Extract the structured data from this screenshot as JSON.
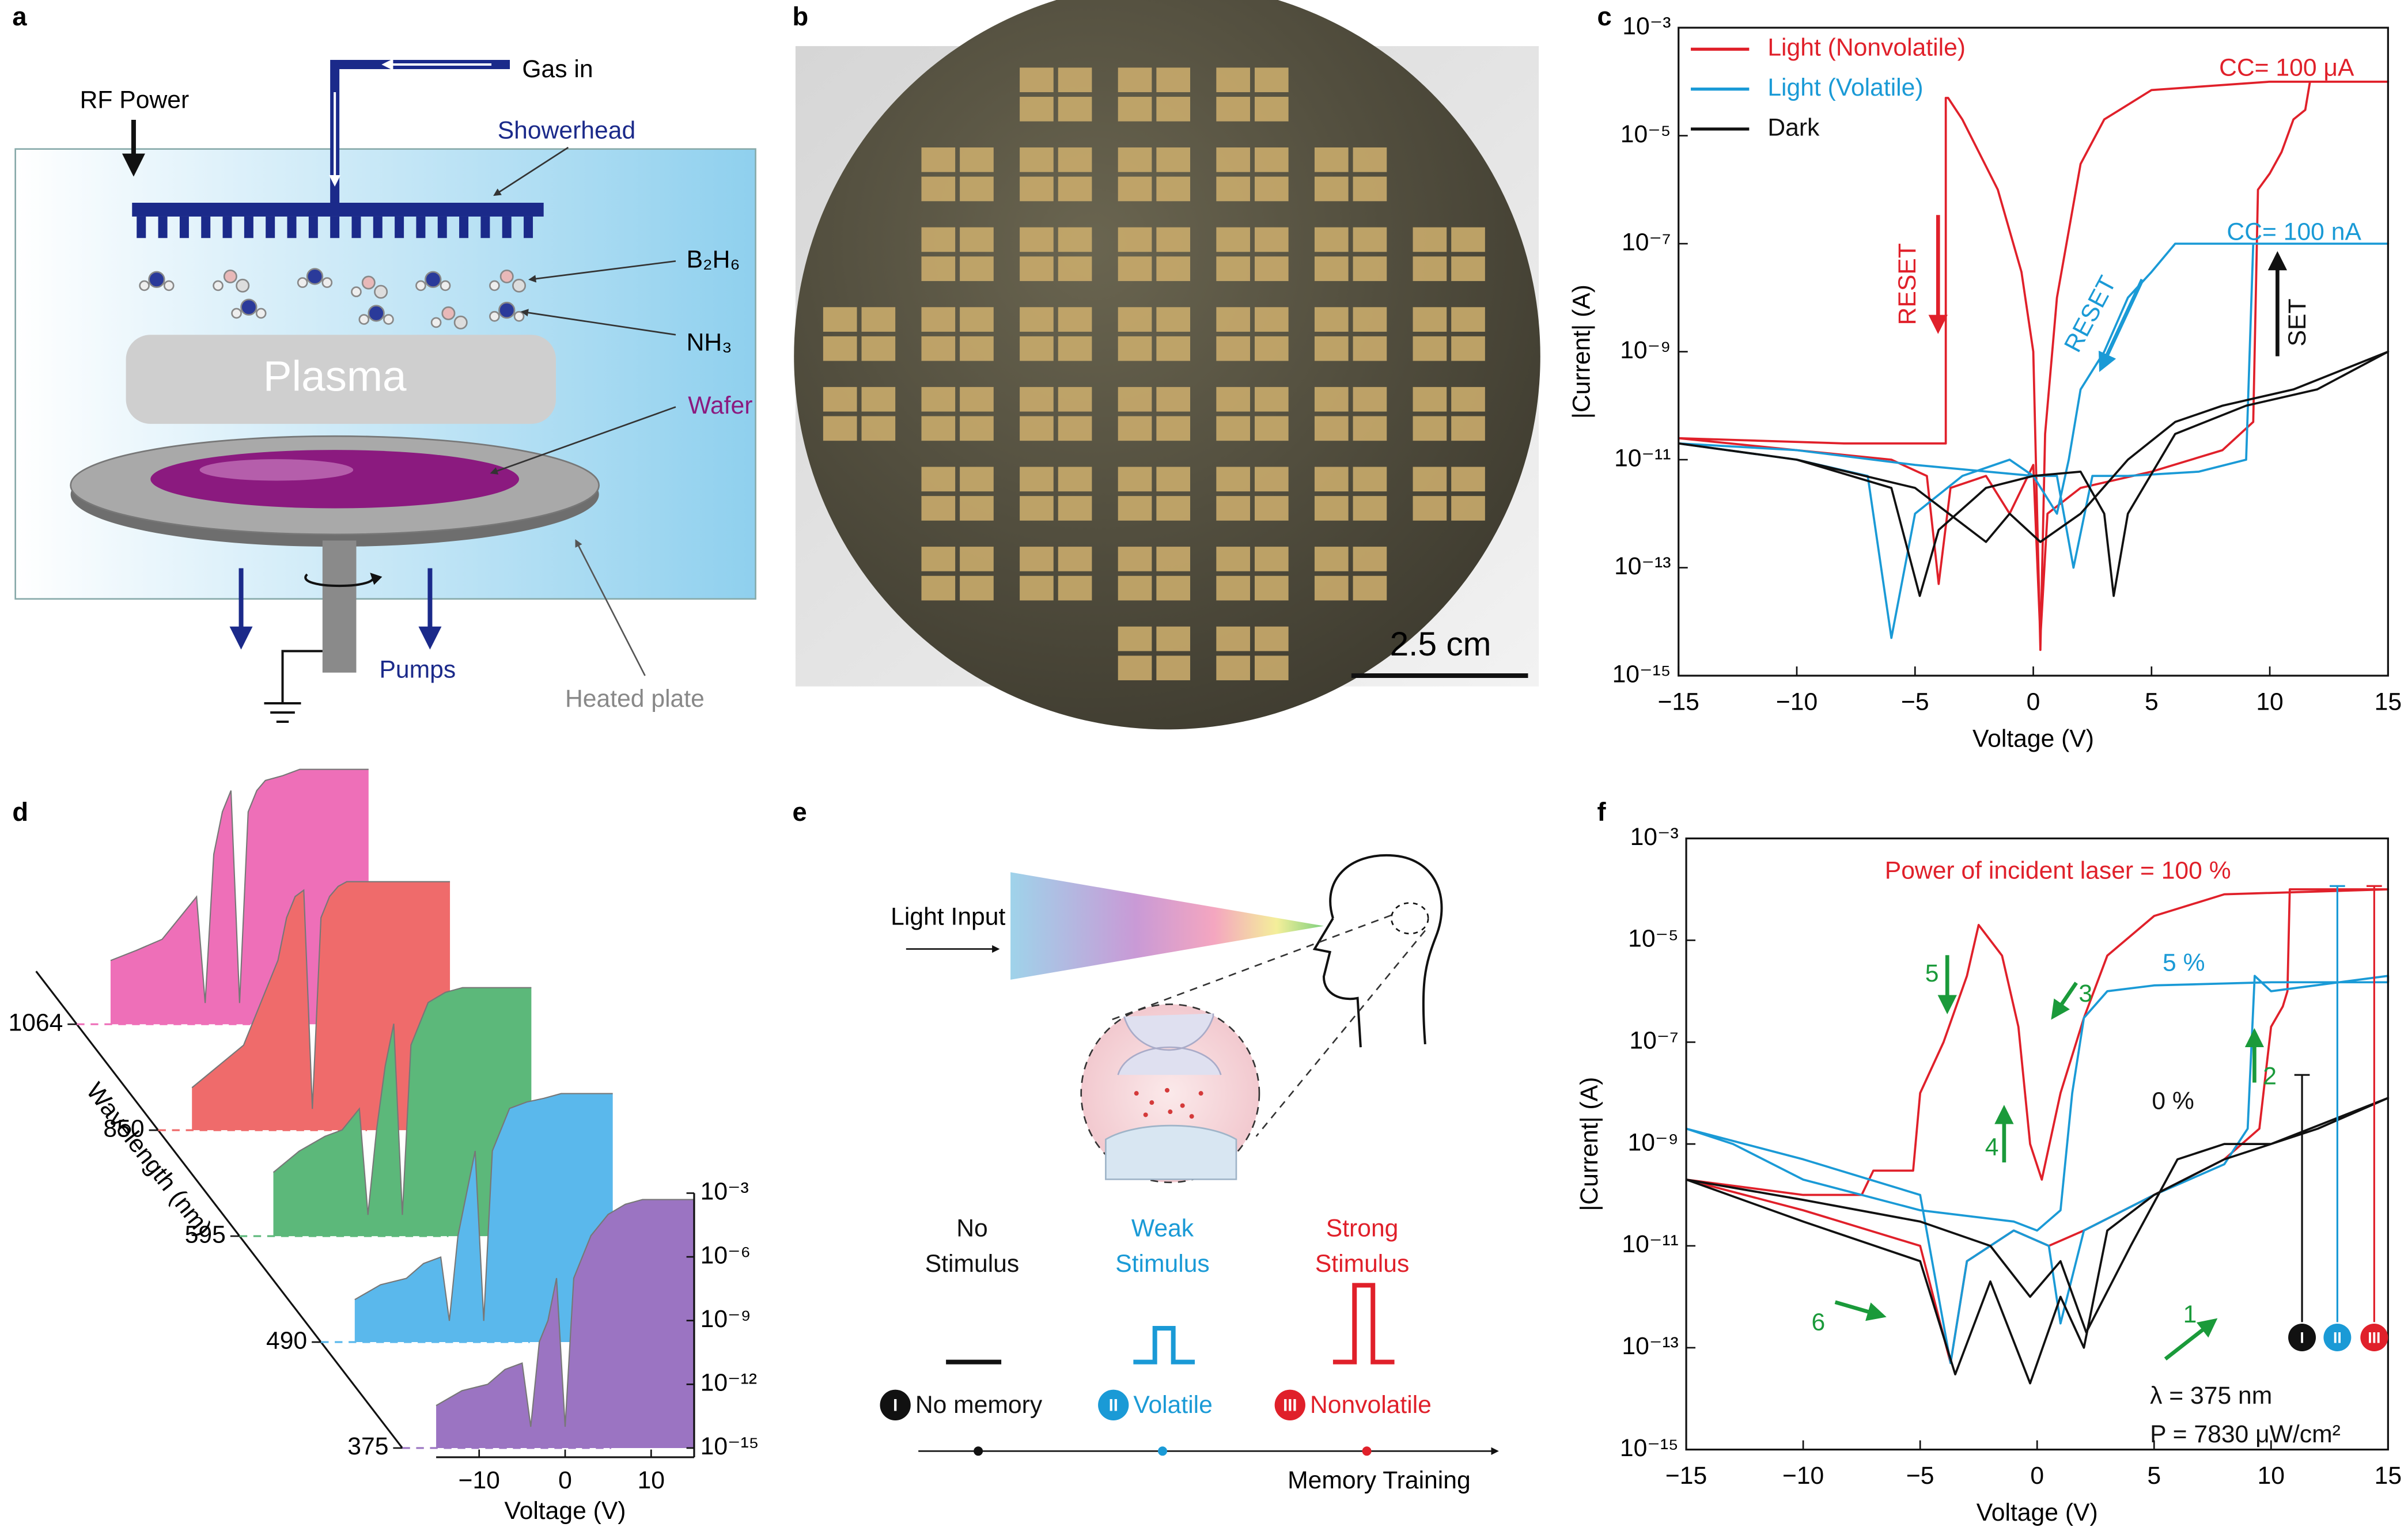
{
  "panel_labels": [
    "a",
    "b",
    "c",
    "d",
    "e",
    "f"
  ],
  "diagram_a": {
    "rf_power": "RF Power",
    "gas_in": "Gas in",
    "showerhead": "Showerhead",
    "b2h6": "B₂H₆",
    "nh3": "NH₃",
    "plasma": "Plasma",
    "wafer": "Wafer",
    "pumps": "Pumps",
    "heated_plate": "Heated plate"
  },
  "photo_b": {
    "scale_bar": "2.5 cm"
  },
  "diagram_e": {
    "light_input": "Light Input",
    "stimuli": [
      {
        "lines": [
          "No",
          "Stimulus"
        ],
        "color": "#111111",
        "memory": "No memory",
        "numeral": "I"
      },
      {
        "lines": [
          "Weak",
          "Stimulus"
        ],
        "color": "#1a9ad6",
        "memory": "Volatile",
        "numeral": "II"
      },
      {
        "lines": [
          "Strong",
          "Stimulus"
        ],
        "color": "#e0202a",
        "memory": "Nonvolatile",
        "numeral": "III"
      }
    ],
    "axis": "Memory Training"
  },
  "chart_data": [
    {
      "type": "line",
      "yscale": "log",
      "xlabel": "Voltage (V)",
      "ylabel": "|Current| (A)",
      "xlim": [
        -15,
        15
      ],
      "xticks": [
        {
          "value": -15,
          "label": "−15"
        },
        {
          "value": -10,
          "label": "−10"
        },
        {
          "value": -5,
          "label": "−5"
        },
        0,
        5,
        10,
        15
      ],
      "ylim": [
        1e-15,
        0.001
      ],
      "yticks": [
        {
          "value": 0.001,
          "label": "10⁻³"
        },
        {
          "value": 1e-05,
          "label": "10⁻⁵"
        },
        {
          "value": 1e-07,
          "label": "10⁻⁷"
        },
        {
          "value": 1e-09,
          "label": "10⁻⁹"
        },
        {
          "value": 1e-11,
          "label": "10⁻¹¹"
        },
        {
          "value": 1e-13,
          "label": "10⁻¹³"
        },
        {
          "value": 1e-15,
          "label": "10⁻¹⁵"
        }
      ],
      "legend": "upper left",
      "series": [
        {
          "name": "Light (Nonvolatile)",
          "color": "#e0202a",
          "x": [
            -15,
            -10,
            -6,
            -4.5,
            -4,
            -3.5,
            -2,
            -1,
            0,
            0.3,
            0.6,
            2,
            5,
            8,
            9.3,
            9.5,
            10,
            10.5,
            11,
            11.5,
            11.7,
            15,
            15,
            10,
            5,
            3,
            2,
            1,
            0.5,
            0.3,
            0,
            -0.5,
            -1.5,
            -3,
            -3.6,
            -3.7,
            -3.7,
            -8,
            -15
          ],
          "values": [
            2.5e-11,
            1.5e-11,
            1e-11,
            5e-12,
            5e-14,
            3e-12,
            5e-12,
            1e-12,
            8e-12,
            5e-15,
            1e-12,
            3e-12,
            6e-12,
            1.5e-11,
            5e-11,
            1e-06,
            2e-06,
            5e-06,
            2e-05,
            3e-05,
            0.0001,
            0.0001,
            0.0001,
            0.0001,
            7e-05,
            2e-05,
            3e-06,
            1e-08,
            3e-11,
            3e-15,
            1e-09,
            3e-08,
            1e-06,
            2e-05,
            5e-05,
            5e-05,
            2e-11,
            2e-11,
            2.5e-11
          ]
        },
        {
          "name": "Light (Volatile)",
          "color": "#1a9ad6",
          "x": [
            -15,
            -10,
            -7,
            -6,
            -5,
            -3,
            -1,
            0,
            1,
            1.7,
            2.5,
            4,
            7,
            9,
            9.3,
            15,
            15,
            6,
            5,
            4,
            3,
            2,
            1.5,
            1,
            0,
            -5,
            -10,
            -15
          ],
          "values": [
            2e-11,
            1e-11,
            5e-12,
            5e-15,
            1e-12,
            5e-12,
            1e-11,
            5e-12,
            5e-12,
            1e-13,
            5e-12,
            5e-12,
            6e-12,
            1e-11,
            1e-07,
            1e-07,
            1e-07,
            1e-07,
            3e-08,
            1e-08,
            1e-09,
            2e-10,
            1e-11,
            1e-12,
            5e-12,
            8e-12,
            1.5e-11,
            2e-11
          ]
        },
        {
          "name": "Dark",
          "color": "#111111",
          "x": [
            -15,
            -10,
            -6,
            -4.8,
            -4,
            -2,
            0,
            2,
            3,
            3.4,
            4,
            6,
            9,
            12,
            15,
            11,
            8,
            6,
            4,
            2,
            0.3,
            -1,
            -2,
            -5,
            -10,
            -15
          ],
          "values": [
            2e-11,
            1e-11,
            3e-12,
            3e-14,
            5e-13,
            3e-12,
            5e-12,
            6e-12,
            1e-12,
            3e-14,
            1e-12,
            3e-11,
            1e-10,
            2e-10,
            1e-09,
            2e-10,
            1e-10,
            5e-11,
            1e-11,
            1e-12,
            3e-13,
            1e-12,
            3e-13,
            3e-12,
            1e-11,
            2e-11
          ]
        }
      ],
      "annotations": [
        {
          "text": "CC= 100 μA",
          "color": "#e0202a"
        },
        {
          "text": "CC= 100 nA",
          "color": "#1a9ad6"
        },
        {
          "text": "RESET",
          "color": "#e0202a"
        },
        {
          "text": "RESET",
          "color": "#1a9ad6"
        },
        {
          "text": "SET",
          "color": "#111111"
        }
      ]
    },
    {
      "type": "waterfall",
      "yscale": "log",
      "xlabel": "Voltage (V)",
      "zlabel": "Wavelength (nm)",
      "xlim": [
        -15,
        15
      ],
      "xticks": [
        {
          "value": -10,
          "label": "−10"
        },
        0,
        10
      ],
      "ylim": [
        1e-15,
        0.001
      ],
      "yticks": [
        {
          "value": 0.001,
          "label": "10⁻³"
        },
        {
          "value": 1e-06,
          "label": "10⁻⁶"
        },
        {
          "value": 1e-09,
          "label": "10⁻⁹"
        },
        {
          "value": 1e-12,
          "label": "10⁻¹²"
        },
        {
          "value": 1e-15,
          "label": "10⁻¹⁵"
        }
      ],
      "x": [
        -15,
        -12,
        -9,
        -7,
        -5,
        -4,
        -3,
        -2,
        -1,
        0,
        1,
        2,
        3,
        5,
        7,
        9,
        12,
        15
      ],
      "series": [
        {
          "name": "1064",
          "color": "#ee6fb8",
          "values": [
            1e-12,
            3e-12,
            1e-11,
            1e-10,
            1e-09,
            1e-14,
            1e-07,
            1e-05,
            0.0001,
            1e-14,
            1e-05,
            0.0001,
            0.0003,
            0.0005,
            0.001,
            0.001,
            0.001,
            0.001
          ]
        },
        {
          "name": "850",
          "color": "#ef6b6b",
          "values": [
            1e-13,
            1e-12,
            1e-11,
            1e-09,
            1e-07,
            1e-05,
            0.0001,
            0.0002,
            1e-14,
            1e-05,
            0.0001,
            0.0003,
            0.0005,
            0.0005,
            0.0005,
            0.0005,
            0.0005,
            0.0005
          ]
        },
        {
          "name": "595",
          "color": "#5cb87a",
          "values": [
            1e-12,
            1e-11,
            5e-11,
            1e-10,
            1e-09,
            1e-14,
            1e-10,
            1e-07,
            1e-05,
            1e-14,
            1e-06,
            1e-05,
            0.0001,
            0.0003,
            0.0005,
            0.0005,
            0.0005,
            0.0005
          ]
        },
        {
          "name": "490",
          "color": "#5ab8ec",
          "values": [
            1e-13,
            5e-13,
            1e-12,
            5e-12,
            1e-11,
            1e-14,
            1e-10,
            1e-08,
            1e-06,
            1e-14,
            1e-06,
            1e-05,
            0.0001,
            0.0002,
            0.0003,
            0.0005,
            0.0005,
            0.0005
          ]
        },
        {
          "name": "375",
          "color": "#9b74c2",
          "values": [
            1e-13,
            5e-13,
            1e-12,
            5e-12,
            1e-11,
            1e-14,
            1e-10,
            1e-09,
            1e-07,
            1e-14,
            1e-07,
            1e-06,
            1e-05,
            0.0001,
            0.0003,
            0.0005,
            0.0005,
            0.0005
          ]
        }
      ]
    },
    {
      "type": "line",
      "yscale": "log",
      "xlabel": "Voltage (V)",
      "ylabel": "|Current| (A)",
      "xlim": [
        -15,
        15
      ],
      "xticks": [
        {
          "value": -15,
          "label": "−15"
        },
        {
          "value": -10,
          "label": "−10"
        },
        {
          "value": -5,
          "label": "−5"
        },
        0,
        5,
        10,
        15
      ],
      "ylim": [
        1e-15,
        0.001
      ],
      "yticks": [
        {
          "value": 0.001,
          "label": "10⁻³"
        },
        {
          "value": 1e-05,
          "label": "10⁻⁵"
        },
        {
          "value": 1e-07,
          "label": "10⁻⁷"
        },
        {
          "value": 1e-09,
          "label": "10⁻⁹"
        },
        {
          "value": 1e-11,
          "label": "10⁻¹¹"
        },
        {
          "value": 1e-13,
          "label": "10⁻¹³"
        },
        {
          "value": 1e-15,
          "label": "10⁻¹⁵"
        }
      ],
      "legend": "inline",
      "series": [
        {
          "name": "Power of incident laser = 100 %",
          "color": "#e0202a",
          "x": [
            -15,
            -10,
            -5,
            -3.7,
            -3,
            -1,
            0.5,
            2,
            5,
            8,
            9.5,
            10,
            10.5,
            10.7,
            10.8,
            15,
            15,
            8,
            5,
            3,
            2,
            1,
            0.2,
            -0.3,
            -0.8,
            -1.5,
            -2.5,
            -3,
            -4,
            -5,
            -5.3,
            -7,
            -7.5,
            -10,
            -15
          ],
          "values": [
            2e-10,
            5e-11,
            1e-11,
            5e-14,
            5e-12,
            2e-11,
            1e-11,
            2e-11,
            1e-10,
            5e-10,
            2e-09,
            2e-07,
            5e-07,
            1e-06,
            0.0001,
            0.0001,
            0.0001,
            8e-05,
            3e-05,
            5e-06,
            3e-07,
            1e-08,
            2e-10,
            1e-09,
            2e-07,
            5e-06,
            2e-05,
            2e-06,
            1e-07,
            1e-08,
            3e-10,
            3e-10,
            1e-10,
            1e-10,
            2e-10
          ]
        },
        {
          "name": "5 %",
          "color": "#1a9ad6",
          "x": [
            -15,
            -10,
            -5,
            -3.7,
            -3,
            -1,
            0.5,
            1,
            2,
            5,
            8,
            9,
            9.3,
            10,
            15,
            15,
            10,
            5,
            3,
            2,
            1.5,
            1,
            0,
            -1,
            -5,
            -10,
            -13,
            -15
          ],
          "values": [
            2e-09,
            5e-10,
            1e-10,
            5e-14,
            5e-12,
            2e-11,
            1e-11,
            3e-13,
            2e-11,
            1e-10,
            4e-10,
            2e-09,
            2e-06,
            1e-06,
            2e-06,
            1.5e-06,
            1.5e-06,
            1.3e-06,
            1e-06,
            3e-07,
            1e-08,
            5e-11,
            2e-11,
            3e-11,
            5e-11,
            2e-10,
            1e-09,
            2e-09
          ]
        },
        {
          "name": "0 %",
          "color": "#111111",
          "x": [
            -15,
            -10,
            -5,
            -3.5,
            -2,
            -0.3,
            1,
            2,
            3,
            5,
            8,
            10,
            15,
            15,
            12,
            10,
            8,
            6,
            4,
            2.1,
            1,
            -0.3,
            -2,
            -5,
            -10,
            -15
          ],
          "values": [
            2e-10,
            3e-11,
            5e-12,
            3e-14,
            2e-12,
            2e-14,
            1e-12,
            1e-13,
            2e-11,
            1e-10,
            5e-10,
            1e-09,
            8e-09,
            8e-09,
            2e-09,
            1e-09,
            1e-09,
            5e-10,
            1e-11,
            2e-13,
            5e-12,
            1e-12,
            1e-11,
            3e-11,
            8e-11,
            2e-10
          ]
        }
      ],
      "annotations": [
        {
          "text": "1",
          "color": "#1a9a3a"
        },
        {
          "text": "2",
          "color": "#1a9a3a"
        },
        {
          "text": "3",
          "color": "#1a9a3a"
        },
        {
          "text": "4",
          "color": "#1a9a3a"
        },
        {
          "text": "5",
          "color": "#1a9a3a"
        },
        {
          "text": "6",
          "color": "#1a9a3a"
        },
        {
          "text": "λ = 375 nm",
          "color": "#111111"
        },
        {
          "text": "P = 7830 μW/cm²",
          "color": "#111111"
        }
      ],
      "markers": [
        {
          "label": "I",
          "color": "#111111"
        },
        {
          "label": "II",
          "color": "#1a9ad6"
        },
        {
          "label": "III",
          "color": "#e0202a"
        }
      ]
    }
  ]
}
